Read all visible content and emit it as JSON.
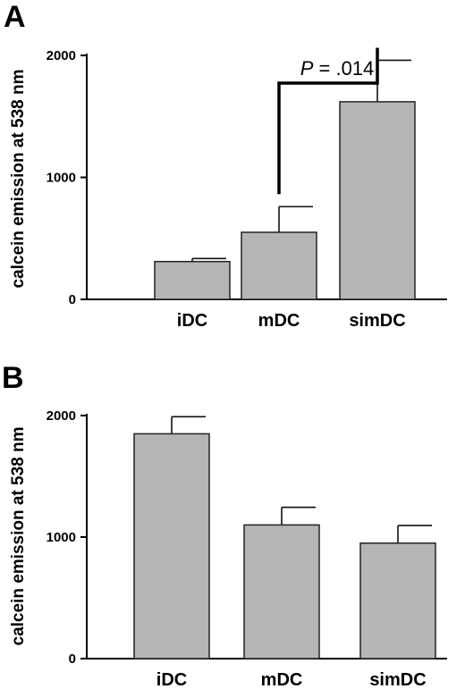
{
  "chart_data": [
    {
      "type": "bar",
      "panel": "A",
      "ylabel": "calcein emission at 538 nm",
      "ylim": [
        0,
        2000
      ],
      "yticks": [
        "0",
        "1000",
        "2000"
      ],
      "categories": [
        "iDC",
        "mDC",
        "simDC"
      ],
      "values": [
        310,
        550,
        1620
      ],
      "errors": [
        25,
        210,
        340
      ],
      "annotation": {
        "italic": "P",
        "text": " = .014",
        "between": [
          "mDC",
          "simDC"
        ]
      }
    },
    {
      "type": "bar",
      "panel": "B",
      "ylabel": "calcein emission at 538 nm",
      "ylim": [
        0,
        2000
      ],
      "yticks": [
        "0",
        "1000",
        "2000"
      ],
      "categories": [
        "iDC",
        "mDC",
        "simDC"
      ],
      "values": [
        1850,
        1100,
        950
      ],
      "errors": [
        140,
        145,
        145
      ]
    }
  ],
  "colors": {
    "bar_fill": "#b5b5b5",
    "bar_stroke": "#222222"
  }
}
